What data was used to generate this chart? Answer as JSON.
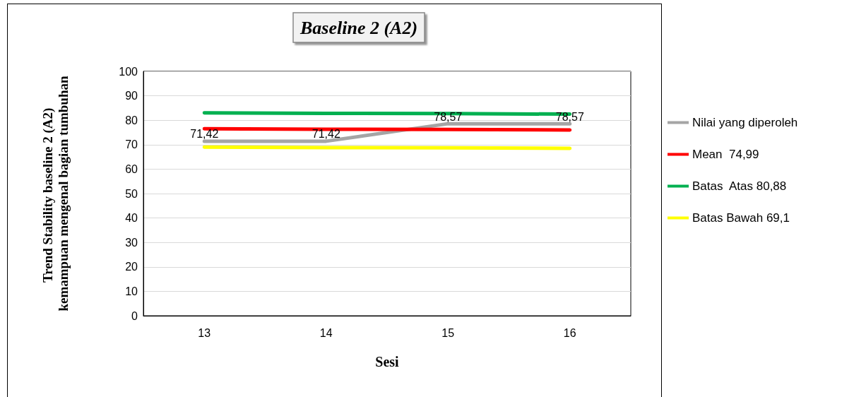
{
  "chart_data": {
    "type": "line",
    "title": "Baseline 2 (A2)",
    "xlabel": "Sesi",
    "ylabel": "Trend Stability baseline 2 (A2) kemampuan mengenal bagian tumbuhan",
    "categories": [
      "13",
      "14",
      "15",
      "16"
    ],
    "series": [
      {
        "name": "Nilai yang diperoleh",
        "color": "#a5a5a5",
        "values": [
          71.42,
          71.42,
          78.57,
          78.57
        ],
        "value_labels": [
          "71,42",
          "71,42",
          "78,57",
          "78,57"
        ]
      },
      {
        "name": "Mean  74,99",
        "color": "#ff0000",
        "values": [
          76.5,
          76.3,
          76.2,
          76
        ]
      },
      {
        "name": "Batas  Atas 80,88",
        "color": "#00b050",
        "values": [
          83,
          82.8,
          82.7,
          82.5
        ]
      },
      {
        "name": "Batas Bawah 69,1",
        "color": "#ffff00",
        "values": [
          69,
          68.8,
          68.7,
          68.5
        ]
      }
    ],
    "ylim": [
      0,
      100
    ],
    "yticks": [
      0,
      10,
      20,
      30,
      40,
      50,
      60,
      70,
      80,
      90,
      100
    ],
    "grid": "y",
    "legend": "right",
    "marker": "none",
    "line_style": "solid"
  }
}
